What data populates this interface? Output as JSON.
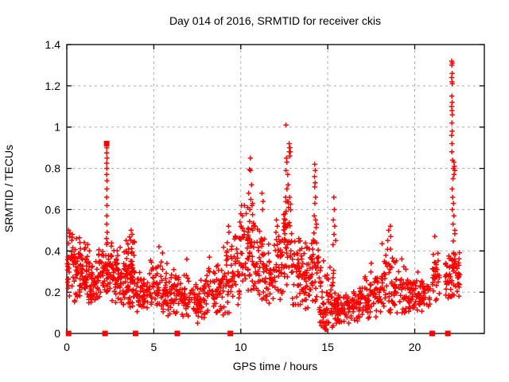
{
  "chart_data": {
    "type": "scatter",
    "title": "Day 014 of 2016, SRMTID for receiver ckis",
    "xlabel": "GPS time / hours",
    "ylabel": "SRMTID / TECUs",
    "xlim": [
      0,
      24
    ],
    "ylim": [
      0,
      1.4
    ],
    "xticks": [
      0,
      5,
      10,
      15,
      20
    ],
    "xtick_labels": [
      "0",
      "5",
      "10",
      "15",
      "20"
    ],
    "yticks": [
      0,
      0.2,
      0.4,
      0.6,
      0.8,
      1.0,
      1.2,
      1.4
    ],
    "ytick_labels": [
      "0",
      "0.2",
      "0.4",
      "0.6",
      "0.8",
      "1",
      "1.2",
      "1.4"
    ],
    "grid": true,
    "legend": false,
    "marker": "plus",
    "marker_color": "#ff0000",
    "grid_color": "#aaaaaa",
    "background": "#ffffff",
    "seed": 20160114,
    "description": "Dense red plus-marker scatter of SRMTID vs GPS time; red filled squares on the x-axis mark data gaps; sparse vertical spike columns rise from the noise band.",
    "gap_marker_x": [
      0.1,
      2.2,
      3.95,
      6.35,
      9.4,
      21.0,
      21.9
    ],
    "square_points": [
      [
        2.29,
        0.92
      ]
    ],
    "peak_points": [
      [
        2.3,
        0.9
      ],
      [
        2.29,
        0.875
      ],
      [
        2.31,
        0.85
      ],
      [
        2.29,
        0.825
      ],
      [
        2.3,
        0.8
      ],
      [
        2.29,
        0.77
      ],
      [
        2.31,
        0.74
      ],
      [
        2.3,
        0.7
      ],
      [
        2.29,
        0.66
      ],
      [
        2.31,
        0.62
      ],
      [
        2.3,
        0.57
      ],
      [
        2.29,
        0.53
      ],
      [
        2.32,
        0.49
      ],
      [
        2.28,
        0.46
      ],
      [
        2.33,
        0.44
      ],
      [
        0.1,
        0.5
      ],
      [
        0.15,
        0.47
      ],
      [
        0.32,
        0.48
      ],
      [
        0.55,
        0.46
      ],
      [
        0.75,
        0.44
      ],
      [
        1.0,
        0.44
      ],
      [
        1.3,
        0.4
      ],
      [
        3.7,
        0.5
      ],
      [
        3.75,
        0.48
      ],
      [
        5.3,
        0.42
      ],
      [
        5.5,
        0.39
      ],
      [
        6.9,
        0.36
      ],
      [
        8.2,
        0.37
      ],
      [
        9.3,
        0.52
      ],
      [
        9.32,
        0.49
      ],
      [
        9.95,
        0.54
      ],
      [
        10.0,
        0.58
      ],
      [
        10.05,
        0.62
      ],
      [
        10.1,
        0.57
      ],
      [
        10.55,
        0.85
      ],
      [
        10.5,
        0.795
      ],
      [
        10.56,
        0.79
      ],
      [
        10.62,
        0.72
      ],
      [
        10.45,
        0.68
      ],
      [
        10.58,
        0.65
      ],
      [
        10.68,
        0.63
      ],
      [
        10.4,
        0.61
      ],
      [
        10.52,
        0.6
      ],
      [
        11.22,
        0.68
      ],
      [
        11.28,
        0.64
      ],
      [
        11.25,
        0.6
      ],
      [
        12.05,
        0.55
      ],
      [
        12.1,
        0.52
      ],
      [
        12.6,
        1.01
      ],
      [
        12.78,
        0.92
      ],
      [
        12.8,
        0.9
      ],
      [
        12.83,
        0.9
      ],
      [
        12.79,
        0.88
      ],
      [
        12.85,
        0.88
      ],
      [
        12.82,
        0.86
      ],
      [
        12.62,
        0.85
      ],
      [
        12.65,
        0.83
      ],
      [
        12.6,
        0.79
      ],
      [
        12.7,
        0.77
      ],
      [
        12.72,
        0.72
      ],
      [
        12.65,
        0.7
      ],
      [
        12.58,
        0.66
      ],
      [
        12.68,
        0.64
      ],
      [
        12.75,
        0.61
      ],
      [
        12.55,
        0.58
      ],
      [
        14.25,
        0.82
      ],
      [
        14.28,
        0.79
      ],
      [
        14.24,
        0.76
      ],
      [
        14.27,
        0.73
      ],
      [
        14.25,
        0.71
      ],
      [
        14.3,
        0.66
      ],
      [
        14.26,
        0.63
      ],
      [
        14.22,
        0.57
      ],
      [
        14.3,
        0.55
      ],
      [
        14.35,
        0.53
      ],
      [
        15.35,
        0.66
      ],
      [
        15.38,
        0.6
      ],
      [
        15.32,
        0.55
      ],
      [
        15.4,
        0.52
      ],
      [
        15.36,
        0.48
      ],
      [
        15.45,
        0.45
      ],
      [
        15.3,
        0.43
      ],
      [
        14.78,
        0.03
      ],
      [
        14.85,
        0.02
      ],
      [
        14.9,
        0.04
      ],
      [
        15.5,
        0.05
      ],
      [
        16.2,
        0.05
      ],
      [
        17.5,
        0.34
      ],
      [
        18.5,
        0.5
      ],
      [
        18.6,
        0.52
      ],
      [
        18.62,
        0.47
      ],
      [
        18.45,
        0.45
      ],
      [
        21.15,
        0.47
      ],
      [
        22.12,
        1.32
      ],
      [
        22.16,
        1.31
      ],
      [
        22.13,
        1.3
      ],
      [
        22.15,
        1.26
      ],
      [
        22.12,
        1.24
      ],
      [
        22.14,
        1.22
      ],
      [
        22.16,
        1.21
      ],
      [
        22.13,
        1.15
      ],
      [
        22.15,
        1.12
      ],
      [
        22.12,
        1.1
      ],
      [
        22.14,
        1.08
      ],
      [
        22.16,
        1.06
      ],
      [
        22.13,
        1.02
      ],
      [
        22.15,
        0.98
      ],
      [
        22.12,
        0.96
      ],
      [
        22.14,
        0.92
      ],
      [
        22.13,
        0.88
      ],
      [
        22.18,
        0.84
      ],
      [
        22.25,
        0.83
      ],
      [
        22.28,
        0.81
      ],
      [
        22.22,
        0.8
      ],
      [
        22.3,
        0.79
      ],
      [
        22.26,
        0.77
      ],
      [
        22.2,
        0.75
      ],
      [
        22.15,
        0.7
      ],
      [
        22.18,
        0.66
      ],
      [
        22.22,
        0.63
      ],
      [
        22.16,
        0.6
      ],
      [
        22.25,
        0.57
      ],
      [
        22.2,
        0.53
      ],
      [
        22.3,
        0.5
      ]
    ],
    "noise_bands": [
      [
        0.02,
        0.35,
        28,
        0.18,
        0.5,
        0.5
      ],
      [
        0.35,
        0.8,
        45,
        0.15,
        0.48,
        0.45
      ],
      [
        0.8,
        1.3,
        45,
        0.14,
        0.45,
        0.45
      ],
      [
        1.3,
        1.8,
        40,
        0.12,
        0.4,
        0.45
      ],
      [
        1.8,
        2.2,
        34,
        0.14,
        0.44,
        0.5
      ],
      [
        2.2,
        2.6,
        34,
        0.17,
        0.46,
        0.5
      ],
      [
        2.6,
        3.1,
        45,
        0.15,
        0.45,
        0.45
      ],
      [
        3.1,
        3.55,
        40,
        0.14,
        0.45,
        0.45
      ],
      [
        3.4,
        3.9,
        30,
        0.15,
        0.5,
        0.55
      ],
      [
        3.55,
        4.1,
        35,
        0.1,
        0.36,
        0.45
      ],
      [
        4.1,
        4.7,
        40,
        0.1,
        0.3,
        0.45
      ],
      [
        4.7,
        5.3,
        40,
        0.1,
        0.38,
        0.45
      ],
      [
        5.3,
        5.9,
        40,
        0.08,
        0.36,
        0.45
      ],
      [
        5.9,
        6.5,
        40,
        0.09,
        0.34,
        0.45
      ],
      [
        6.5,
        7.1,
        40,
        0.07,
        0.33,
        0.45
      ],
      [
        7.1,
        7.7,
        34,
        0.05,
        0.26,
        0.45
      ],
      [
        7.7,
        8.4,
        40,
        0.07,
        0.34,
        0.45
      ],
      [
        8.4,
        9.0,
        40,
        0.09,
        0.38,
        0.45
      ],
      [
        9.0,
        9.6,
        40,
        0.1,
        0.48,
        0.4
      ],
      [
        9.6,
        10.2,
        40,
        0.14,
        0.55,
        0.45
      ],
      [
        10.2,
        10.75,
        46,
        0.2,
        0.62,
        0.55
      ],
      [
        10.75,
        11.3,
        40,
        0.15,
        0.55,
        0.45
      ],
      [
        11.3,
        11.9,
        40,
        0.12,
        0.5,
        0.4
      ],
      [
        11.9,
        12.45,
        40,
        0.15,
        0.55,
        0.45
      ],
      [
        12.45,
        12.95,
        46,
        0.22,
        0.66,
        0.5
      ],
      [
        12.95,
        13.5,
        40,
        0.14,
        0.52,
        0.4
      ],
      [
        13.5,
        14.0,
        40,
        0.12,
        0.48,
        0.4
      ],
      [
        14.0,
        14.5,
        40,
        0.15,
        0.55,
        0.45
      ],
      [
        14.5,
        14.95,
        40,
        0.02,
        0.4,
        0.35
      ],
      [
        14.95,
        15.45,
        40,
        0.03,
        0.35,
        0.4
      ],
      [
        15.45,
        16.1,
        45,
        0.04,
        0.2,
        0.45
      ],
      [
        16.1,
        16.8,
        45,
        0.05,
        0.22,
        0.45
      ],
      [
        16.8,
        17.4,
        40,
        0.07,
        0.28,
        0.45
      ],
      [
        17.4,
        18.1,
        42,
        0.08,
        0.33,
        0.45
      ],
      [
        18.1,
        18.8,
        45,
        0.1,
        0.45,
        0.5
      ],
      [
        18.8,
        19.5,
        42,
        0.1,
        0.38,
        0.45
      ],
      [
        19.5,
        20.2,
        45,
        0.1,
        0.32,
        0.45
      ],
      [
        20.2,
        20.9,
        40,
        0.1,
        0.28,
        0.45
      ],
      [
        21.0,
        21.45,
        30,
        0.16,
        0.45,
        0.45
      ],
      [
        21.75,
        22.1,
        28,
        0.15,
        0.4,
        0.45
      ],
      [
        22.1,
        22.38,
        24,
        0.18,
        0.5,
        0.45
      ],
      [
        22.38,
        22.6,
        18,
        0.18,
        0.42,
        0.45
      ]
    ]
  }
}
